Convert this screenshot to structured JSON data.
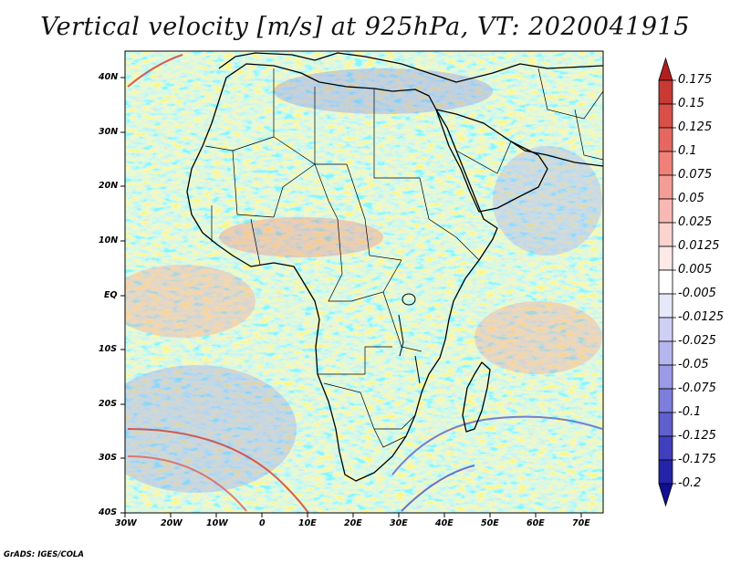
{
  "title": "Vertical velocity [m/s] at 925hPa, VT: 2020041915",
  "footer": "GrADS: IGES/COLA",
  "map": {
    "region": "Africa and Middle East",
    "lon_range": [
      -30,
      75
    ],
    "lat_range": [
      -40,
      45
    ],
    "lon_tick_labels": [
      "30W",
      "20W",
      "10W",
      "0",
      "10E",
      "20E",
      "30E",
      "40E",
      "50E",
      "60E",
      "70E"
    ],
    "lat_tick_labels": [
      "40N",
      "30N",
      "20N",
      "10N",
      "EQ",
      "10S",
      "20S",
      "30S",
      "40S"
    ]
  },
  "colorbar": {
    "labels": [
      "0.175",
      "0.15",
      "0.125",
      "0.1",
      "0.075",
      "0.05",
      "0.025",
      "0.0125",
      "0.005",
      "-0.005",
      "-0.0125",
      "-0.025",
      "-0.05",
      "-0.075",
      "-0.1",
      "-0.125",
      "-0.175",
      "-0.2"
    ],
    "colors": [
      "#b21f1f",
      "#c83a34",
      "#d9504a",
      "#e66760",
      "#ef817a",
      "#f49d97",
      "#f8b9b4",
      "#fbd3cf",
      "#fde9e7",
      "#ffffff",
      "#e8e8fb",
      "#d0d0f6",
      "#b6b6ef",
      "#9a9ae6",
      "#7d7ddb",
      "#5f5fce",
      "#4040bd",
      "#2424a8",
      "#0f0f94"
    ]
  }
}
